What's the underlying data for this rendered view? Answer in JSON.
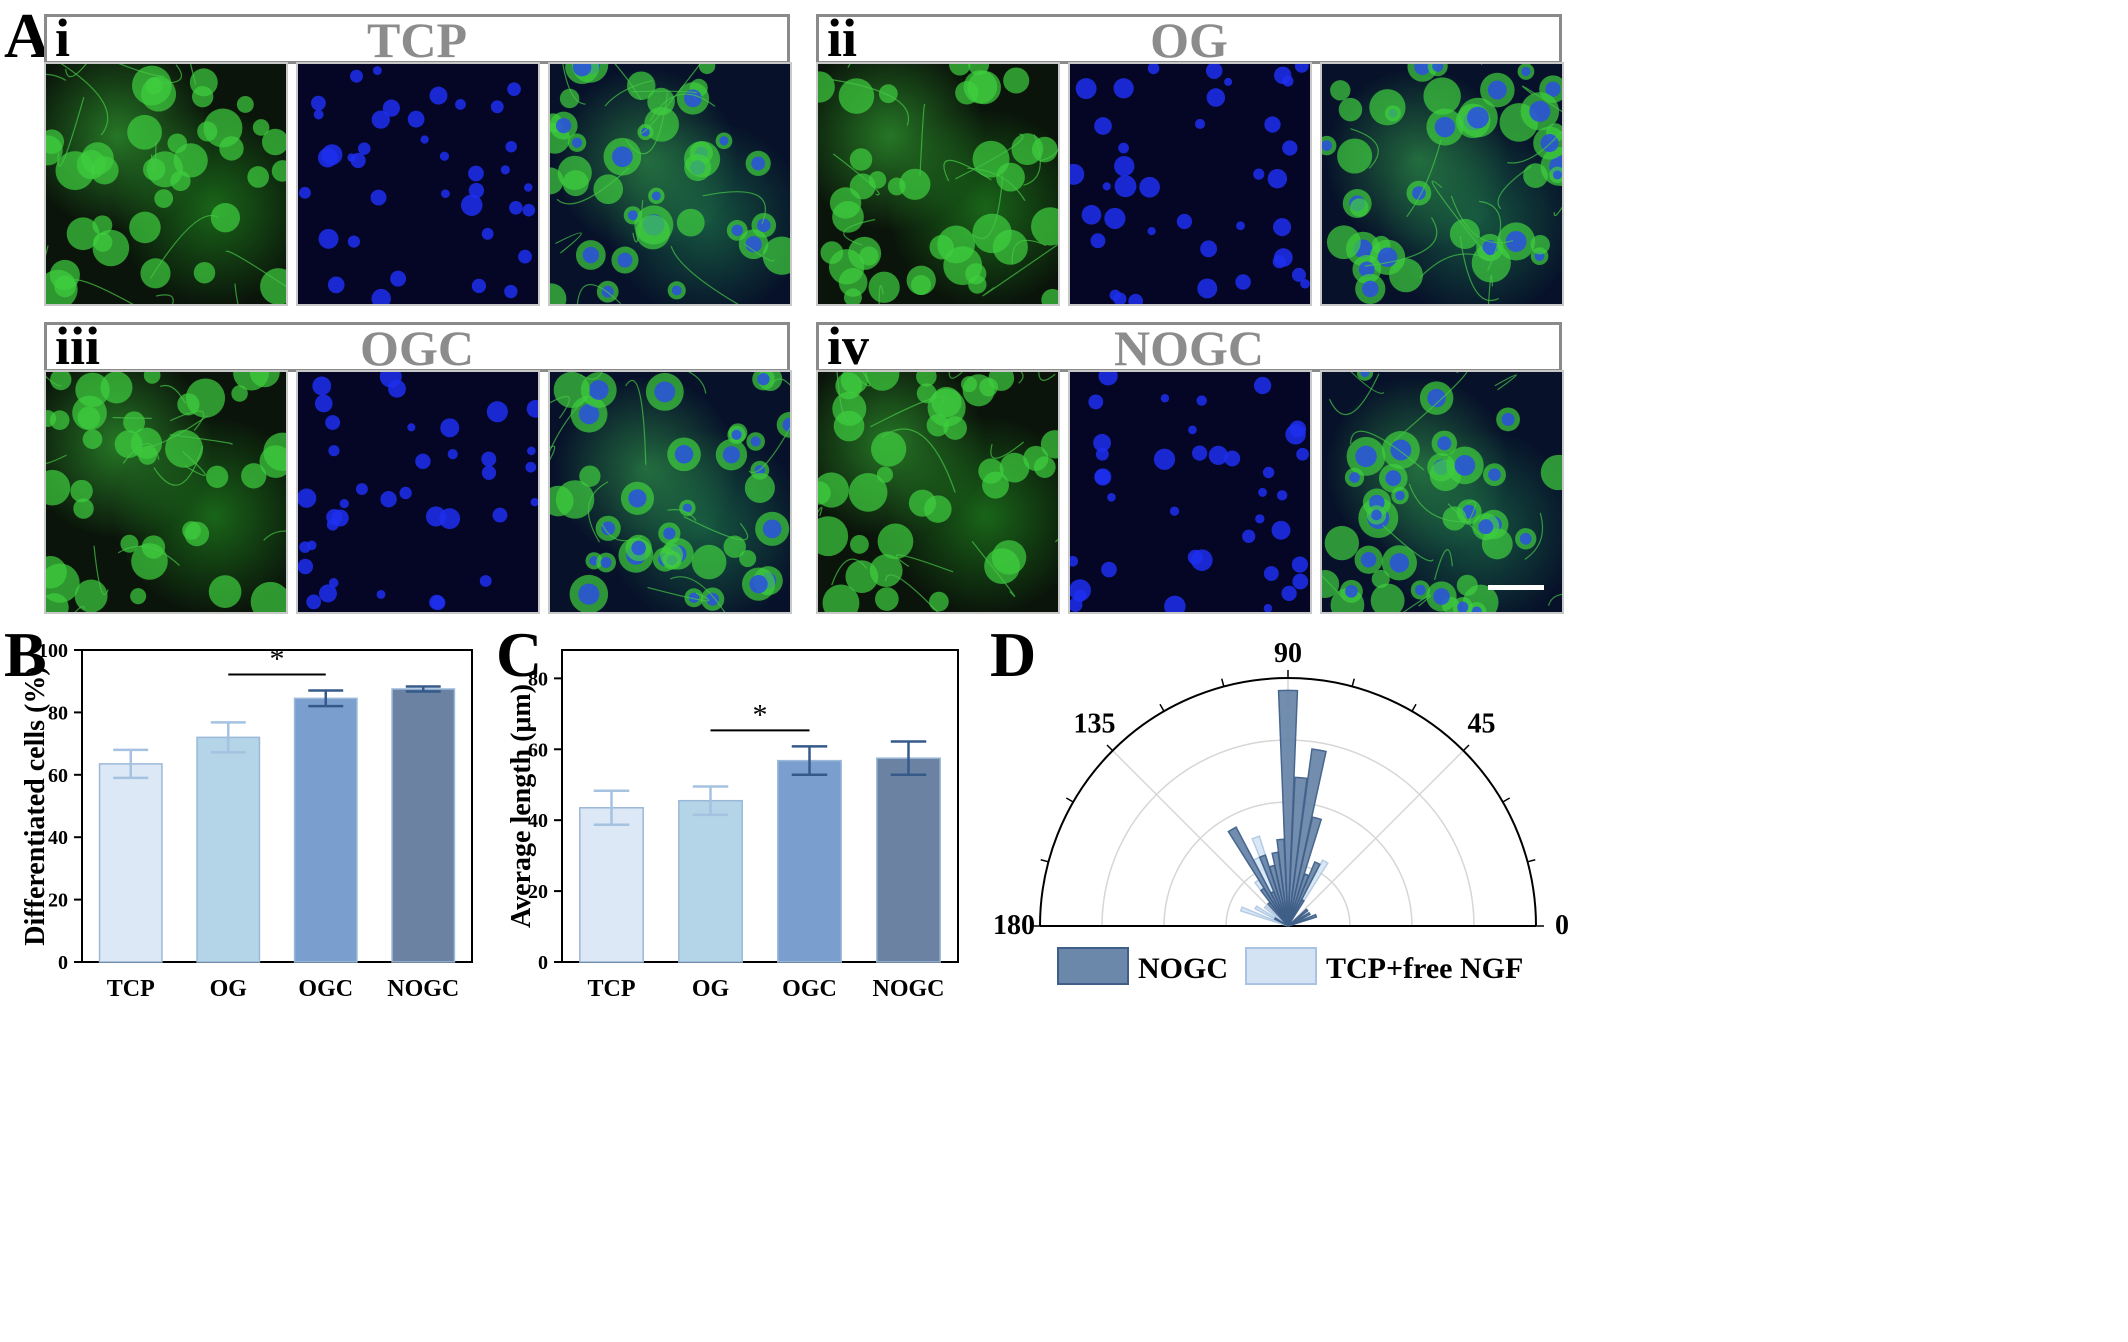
{
  "panelA": {
    "letter": "A",
    "groups": [
      {
        "roman": "i",
        "condition": "TCP"
      },
      {
        "roman": "ii",
        "condition": "OG"
      },
      {
        "roman": "iii",
        "condition": "OGC"
      },
      {
        "roman": "iv",
        "condition": "NOGC"
      }
    ]
  },
  "chart_data": [
    {
      "panel": "B",
      "type": "bar",
      "title": "",
      "xlabel": "",
      "ylabel": "Differentiated cells (%)",
      "ylim": [
        0,
        100
      ],
      "yticks": [
        "0",
        "20",
        "40",
        "60",
        "80",
        "100"
      ],
      "categories": [
        "TCP",
        "OG",
        "OGC",
        "NOGC"
      ],
      "values": [
        63.5,
        72,
        84.5,
        87.5
      ],
      "errors": [
        4.5,
        4.8,
        2.5,
        0.8
      ],
      "colors": [
        "#dce8f5",
        "#b4d4e8",
        "#7a9fcf",
        "#6b82a3"
      ],
      "significance": {
        "from": "OG",
        "to": "OGC",
        "label": "*"
      }
    },
    {
      "panel": "C",
      "type": "bar",
      "title": "",
      "xlabel": "",
      "ylabel": "Average length (μm)",
      "ylim": [
        0,
        88
      ],
      "yticks": [
        "0",
        "20",
        "40",
        "60",
        "80"
      ],
      "categories": [
        "TCP",
        "OG",
        "OGC",
        "NOGC"
      ],
      "values": [
        43.5,
        45.5,
        56.8,
        57.5
      ],
      "errors": [
        4.8,
        4.0,
        4.0,
        4.7
      ],
      "colors": [
        "#dce8f5",
        "#b4d4e8",
        "#7a9fcf",
        "#6b82a3"
      ],
      "significance": {
        "from": "OG",
        "to": "OGC",
        "label": "*"
      }
    },
    {
      "panel": "D",
      "type": "polar-bar",
      "title": "",
      "angle_labels": [
        "0",
        "45",
        "90",
        "135",
        "180"
      ],
      "series": [
        {
          "name": "NOGC",
          "color": "#6b87aa",
          "angles": [
            60,
            65,
            70,
            75,
            80,
            85,
            90,
            95,
            100,
            105,
            110,
            115,
            120,
            125,
            130,
            20,
            30,
            40,
            150
          ],
          "radii": [
            0.12,
            0.28,
            0.22,
            0.45,
            0.72,
            0.6,
            0.95,
            0.35,
            0.3,
            0.25,
            0.3,
            0.15,
            0.45,
            0.18,
            0.12,
            0.12,
            0.1,
            0.1,
            0.06
          ]
        },
        {
          "name": "TCP+free NGF",
          "color": "#d4e3f4",
          "angles": [
            60,
            70,
            80,
            90,
            100,
            110,
            115,
            120,
            125,
            160,
            150,
            20,
            30,
            140
          ],
          "radii": [
            0.3,
            0.22,
            0.2,
            0.42,
            0.25,
            0.38,
            0.3,
            0.35,
            0.22,
            0.2,
            0.15,
            0.1,
            0.08,
            0.12
          ]
        }
      ]
    }
  ]
}
